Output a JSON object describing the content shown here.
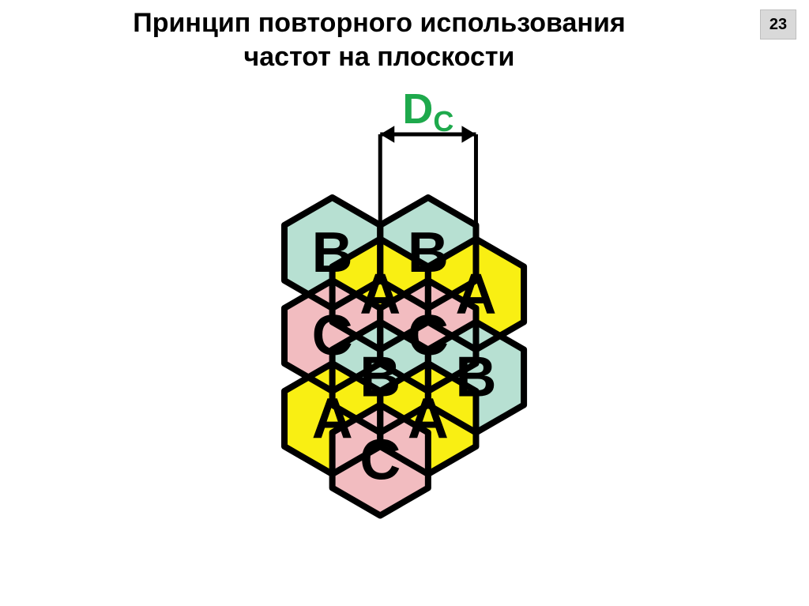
{
  "page_number": "23",
  "title_line1": "Принцип повторного использования",
  "title_line2": "частот на плоскости",
  "colors": {
    "A": "#f9ef13",
    "B": "#b7e0d2",
    "C": "#f2bcc0",
    "stroke": "#000000",
    "dc_label": "#1ea94c",
    "bg": "#ffffff",
    "letter": "#000000"
  },
  "hex": {
    "radius": 70,
    "stroke_width": 8,
    "font_size": 72,
    "font_family": "Arial",
    "font_weight": "bold"
  },
  "dc": {
    "label": "D",
    "sub": "C",
    "font_size": 54,
    "sub_size": 36,
    "line_width": 5,
    "arrow_size": 18
  },
  "cells": [
    {
      "col": 0,
      "row": 0,
      "label": "B",
      "fill_key": "B"
    },
    {
      "col": 2,
      "row": 0,
      "label": "B",
      "fill_key": "B"
    },
    {
      "col": 1,
      "row": 1,
      "label": "A",
      "fill_key": "A"
    },
    {
      "col": 3,
      "row": 1,
      "label": "A",
      "fill_key": "A"
    },
    {
      "col": 0,
      "row": 2,
      "label": "C",
      "fill_key": "C"
    },
    {
      "col": 2,
      "row": 2,
      "label": "C",
      "fill_key": "C"
    },
    {
      "col": 1,
      "row": 3,
      "label": "B",
      "fill_key": "B"
    },
    {
      "col": 3,
      "row": 3,
      "label": "B",
      "fill_key": "B"
    },
    {
      "col": 0,
      "row": 4,
      "label": "A",
      "fill_key": "A"
    },
    {
      "col": 2,
      "row": 4,
      "label": "A",
      "fill_key": "A"
    },
    {
      "col": 1,
      "row": 5,
      "label": "C",
      "fill_key": "C"
    }
  ],
  "dc_between": {
    "from_index": 2,
    "to_index": 3
  }
}
